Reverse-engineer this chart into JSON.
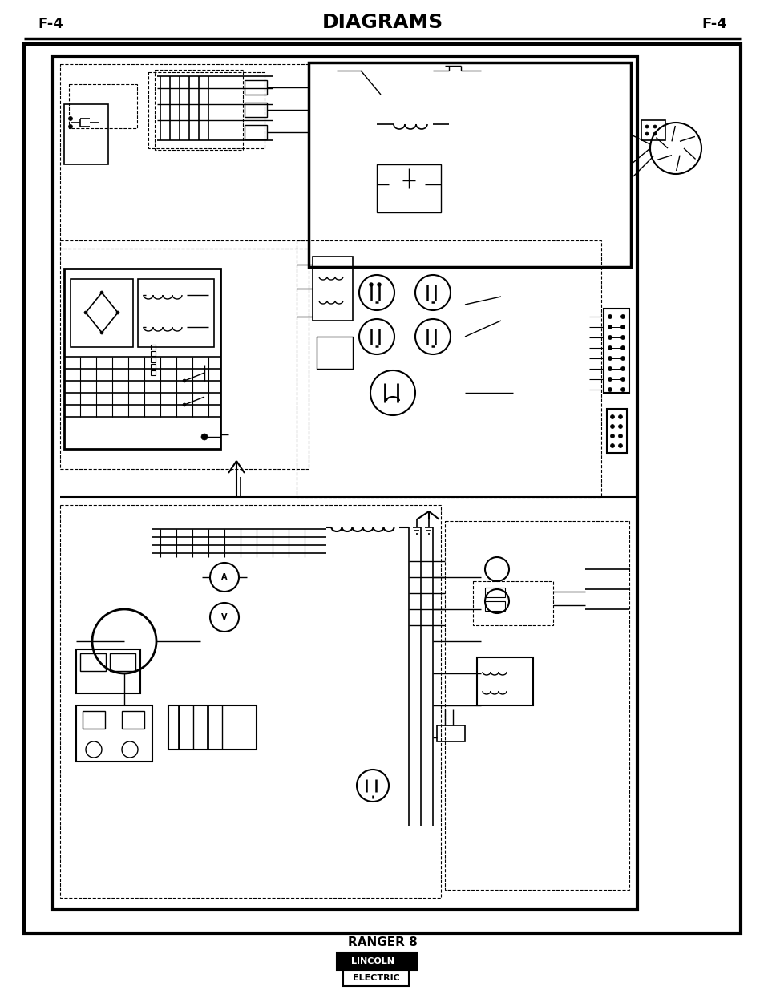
{
  "title": "DIAGRAMS",
  "page_ref_left": "F-4",
  "page_ref_right": "F-4",
  "footer_text": "RANGER 8",
  "bg_color": "#ffffff",
  "title_fontsize": 18,
  "ref_fontsize": 13,
  "footer_fontsize": 11
}
